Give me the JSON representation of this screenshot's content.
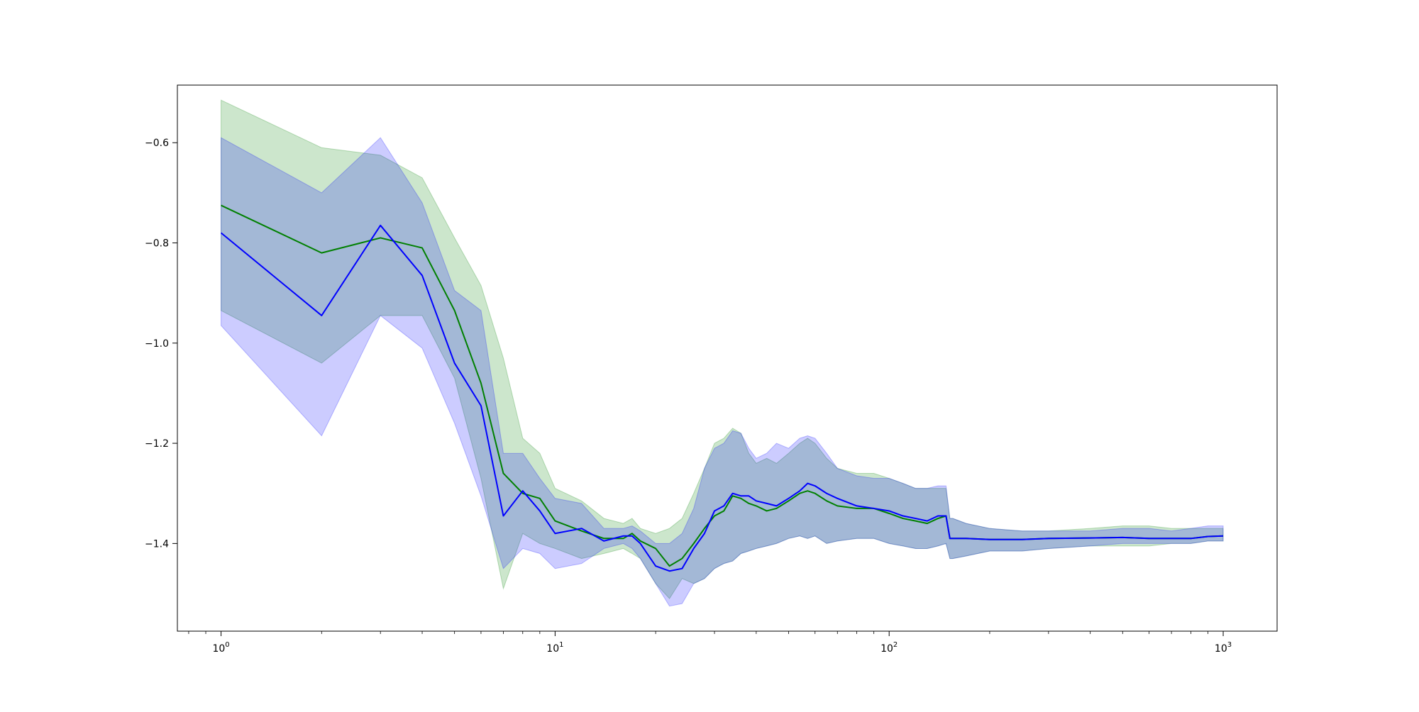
{
  "chart_data": {
    "type": "line",
    "title": "",
    "xlabel": "",
    "ylabel": "",
    "x_scale": "log",
    "xlim": [
      0.74,
      1450
    ],
    "ylim": [
      -1.575,
      -0.485
    ],
    "grid": false,
    "legend": "none",
    "x_ticks": [
      {
        "value": 1,
        "base": "10",
        "exp": "0"
      },
      {
        "value": 10,
        "base": "10",
        "exp": "1"
      },
      {
        "value": 100,
        "base": "10",
        "exp": "2"
      },
      {
        "value": 1000,
        "base": "10",
        "exp": "3"
      }
    ],
    "y_ticks": [
      {
        "value": -0.6,
        "label": "−0.6"
      },
      {
        "value": -0.8,
        "label": "−0.8"
      },
      {
        "value": -1.0,
        "label": "−1.0"
      },
      {
        "value": -1.2,
        "label": "−1.2"
      },
      {
        "value": -1.4,
        "label": "−1.4"
      }
    ],
    "series": [
      {
        "color": "#008000",
        "band_color": "#008000",
        "band_opacity": 0.2,
        "x": [
          1,
          2,
          3,
          4,
          5,
          6,
          7,
          8,
          9,
          10,
          12,
          14,
          16,
          17,
          18,
          20,
          22,
          24,
          26,
          28,
          30,
          32,
          34,
          36,
          38,
          40,
          43,
          46,
          50,
          54,
          57,
          60,
          65,
          70,
          80,
          90,
          100,
          110,
          120,
          130,
          140,
          148,
          152,
          155,
          170,
          200,
          250,
          300,
          400,
          500,
          600,
          700,
          800,
          900,
          1000
        ],
        "mean": [
          -0.725,
          -0.82,
          -0.79,
          -0.81,
          -0.935,
          -1.08,
          -1.26,
          -1.3,
          -1.31,
          -1.355,
          -1.375,
          -1.39,
          -1.39,
          -1.38,
          -1.395,
          -1.41,
          -1.445,
          -1.43,
          -1.4,
          -1.37,
          -1.345,
          -1.335,
          -1.305,
          -1.31,
          -1.32,
          -1.325,
          -1.335,
          -1.33,
          -1.315,
          -1.3,
          -1.295,
          -1.3,
          -1.315,
          -1.325,
          -1.33,
          -1.33,
          -1.34,
          -1.35,
          -1.355,
          -1.36,
          -1.35,
          -1.345,
          -1.39,
          -1.39,
          -1.39,
          -1.392,
          -1.392,
          -1.39,
          -1.389,
          -1.388,
          -1.39,
          -1.39,
          -1.39,
          -1.386,
          -1.385
        ],
        "lower": [
          -0.935,
          -1.04,
          -0.945,
          -0.945,
          -1.07,
          -1.27,
          -1.49,
          -1.38,
          -1.4,
          -1.41,
          -1.43,
          -1.42,
          -1.41,
          -1.42,
          -1.43,
          -1.48,
          -1.51,
          -1.47,
          -1.48,
          -1.47,
          -1.45,
          -1.44,
          -1.435,
          -1.42,
          -1.415,
          -1.41,
          -1.405,
          -1.4,
          -1.39,
          -1.385,
          -1.39,
          -1.385,
          -1.4,
          -1.395,
          -1.39,
          -1.39,
          -1.4,
          -1.405,
          -1.41,
          -1.41,
          -1.405,
          -1.4,
          -1.43,
          -1.43,
          -1.425,
          -1.415,
          -1.415,
          -1.41,
          -1.405,
          -1.405,
          -1.405,
          -1.4,
          -1.4,
          -1.395,
          -1.395
        ],
        "upper": [
          -0.515,
          -0.61,
          -0.625,
          -0.67,
          -0.79,
          -0.885,
          -1.03,
          -1.19,
          -1.22,
          -1.29,
          -1.315,
          -1.35,
          -1.36,
          -1.35,
          -1.37,
          -1.38,
          -1.37,
          -1.35,
          -1.3,
          -1.25,
          -1.2,
          -1.19,
          -1.17,
          -1.18,
          -1.22,
          -1.24,
          -1.23,
          -1.24,
          -1.22,
          -1.2,
          -1.19,
          -1.2,
          -1.23,
          -1.25,
          -1.26,
          -1.26,
          -1.27,
          -1.28,
          -1.29,
          -1.29,
          -1.29,
          -1.29,
          -1.35,
          -1.35,
          -1.36,
          -1.37,
          -1.375,
          -1.375,
          -1.37,
          -1.365,
          -1.365,
          -1.37,
          -1.37,
          -1.37,
          -1.37
        ]
      },
      {
        "color": "#0000ff",
        "band_color": "#0000ff",
        "band_opacity": 0.2,
        "x": [
          1,
          2,
          3,
          4,
          5,
          6,
          7,
          8,
          9,
          10,
          12,
          14,
          16,
          17,
          18,
          20,
          22,
          24,
          26,
          28,
          30,
          32,
          34,
          36,
          38,
          40,
          43,
          46,
          50,
          54,
          57,
          60,
          65,
          70,
          80,
          90,
          100,
          110,
          120,
          130,
          140,
          148,
          152,
          155,
          170,
          200,
          250,
          300,
          400,
          500,
          600,
          700,
          800,
          900,
          1000
        ],
        "mean": [
          -0.78,
          -0.945,
          -0.765,
          -0.865,
          -1.04,
          -1.125,
          -1.345,
          -1.295,
          -1.335,
          -1.38,
          -1.37,
          -1.395,
          -1.385,
          -1.385,
          -1.4,
          -1.445,
          -1.455,
          -1.45,
          -1.41,
          -1.38,
          -1.335,
          -1.325,
          -1.3,
          -1.305,
          -1.305,
          -1.315,
          -1.32,
          -1.325,
          -1.31,
          -1.295,
          -1.28,
          -1.285,
          -1.3,
          -1.31,
          -1.325,
          -1.33,
          -1.335,
          -1.345,
          -1.35,
          -1.355,
          -1.345,
          -1.345,
          -1.39,
          -1.39,
          -1.39,
          -1.392,
          -1.392,
          -1.39,
          -1.389,
          -1.388,
          -1.39,
          -1.39,
          -1.39,
          -1.386,
          -1.385
        ],
        "lower": [
          -0.965,
          -1.185,
          -0.945,
          -1.01,
          -1.16,
          -1.305,
          -1.45,
          -1.41,
          -1.42,
          -1.45,
          -1.44,
          -1.41,
          -1.4,
          -1.41,
          -1.43,
          -1.48,
          -1.525,
          -1.52,
          -1.48,
          -1.47,
          -1.45,
          -1.44,
          -1.435,
          -1.42,
          -1.415,
          -1.41,
          -1.405,
          -1.4,
          -1.39,
          -1.385,
          -1.39,
          -1.385,
          -1.4,
          -1.395,
          -1.39,
          -1.39,
          -1.4,
          -1.405,
          -1.41,
          -1.41,
          -1.405,
          -1.4,
          -1.43,
          -1.43,
          -1.425,
          -1.415,
          -1.415,
          -1.41,
          -1.405,
          -1.4,
          -1.4,
          -1.4,
          -1.4,
          -1.395,
          -1.395
        ],
        "upper": [
          -0.59,
          -0.7,
          -0.59,
          -0.72,
          -0.895,
          -0.935,
          -1.22,
          -1.22,
          -1.27,
          -1.31,
          -1.32,
          -1.37,
          -1.37,
          -1.365,
          -1.375,
          -1.4,
          -1.4,
          -1.38,
          -1.33,
          -1.25,
          -1.21,
          -1.2,
          -1.175,
          -1.18,
          -1.21,
          -1.23,
          -1.22,
          -1.2,
          -1.21,
          -1.19,
          -1.185,
          -1.19,
          -1.22,
          -1.25,
          -1.265,
          -1.27,
          -1.27,
          -1.28,
          -1.29,
          -1.29,
          -1.285,
          -1.285,
          -1.35,
          -1.35,
          -1.36,
          -1.37,
          -1.375,
          -1.375,
          -1.375,
          -1.37,
          -1.37,
          -1.375,
          -1.37,
          -1.365,
          -1.365
        ]
      }
    ]
  }
}
